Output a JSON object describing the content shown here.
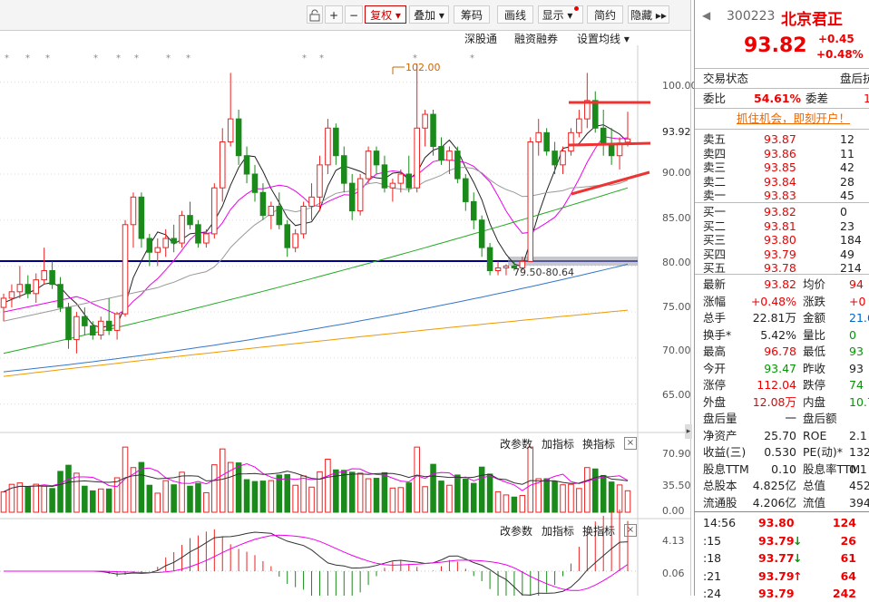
{
  "toolbar": {
    "buttons": [
      {
        "label": "+"
      },
      {
        "label": "−"
      },
      {
        "label": "复权 ▾"
      },
      {
        "label": "叠加 ▾"
      },
      {
        "label": "筹码"
      },
      {
        "label": "画线"
      },
      {
        "label": "显示 ▾"
      },
      {
        "label": "简约"
      },
      {
        "label": "隐藏 ▸▸"
      }
    ]
  },
  "chart_links": {
    "a": "深股通",
    "b": "融资融券",
    "c": "设置均线 ▾"
  },
  "price_chart": {
    "y_ticks": [
      "100.00",
      "93.92",
      "90.00",
      "85.00",
      "80.00",
      "75.00",
      "70.00",
      "65.00"
    ],
    "annotation_high": "102.00",
    "annotation_zone": "79.50-80.64"
  },
  "volume_chart": {
    "buttons": {
      "a": "改参数",
      "b": "加指标",
      "c": "换指标"
    },
    "y_ticks": [
      "70.90",
      "35.50",
      "0.00"
    ]
  },
  "macd_chart": {
    "buttons": {
      "a": "改参数",
      "b": "加指标",
      "c": "换指标"
    },
    "y_ticks": [
      "4.13",
      "0.06"
    ]
  },
  "stock": {
    "code": "300223",
    "name": "北京君正",
    "price": "93.82",
    "change": "+0.45",
    "change_pct": "+0.48%"
  },
  "status": {
    "label": "交易状态",
    "value": "盘后抗"
  },
  "weibi": {
    "label1": "委比",
    "value1": "54.61%",
    "label2": "委差",
    "value2": "1"
  },
  "promo": "抓住机会，即刻开户！",
  "asks": [
    {
      "label": "卖五",
      "price": "93.87",
      "vol": "12"
    },
    {
      "label": "卖四",
      "price": "93.86",
      "vol": "11"
    },
    {
      "label": "卖三",
      "price": "93.85",
      "vol": "42"
    },
    {
      "label": "卖二",
      "price": "93.84",
      "vol": "28"
    },
    {
      "label": "卖一",
      "price": "93.83",
      "vol": "45"
    }
  ],
  "bids": [
    {
      "label": "买一",
      "price": "93.82",
      "vol": "0"
    },
    {
      "label": "买二",
      "price": "93.81",
      "vol": "23"
    },
    {
      "label": "买三",
      "price": "93.80",
      "vol": "184"
    },
    {
      "label": "买四",
      "price": "93.79",
      "vol": "49"
    },
    {
      "label": "买五",
      "price": "93.78",
      "vol": "214"
    }
  ],
  "stats": [
    {
      "l1": "最新",
      "v1": "93.82",
      "c1": "red",
      "l2": "均价",
      "v2": "94",
      "c2": "red"
    },
    {
      "l1": "涨幅",
      "v1": "+0.48%",
      "c1": "red",
      "l2": "涨跌",
      "v2": "+0",
      "c2": "red"
    },
    {
      "l1": "总手",
      "v1": "22.81万",
      "c1": "",
      "l2": "金额",
      "v2": "21.6",
      "c2": "blue"
    },
    {
      "l1": "换手*",
      "v1": "5.42%",
      "c1": "",
      "l2": "量比",
      "v2": "0",
      "c2": "green"
    },
    {
      "l1": "最高",
      "v1": "96.78",
      "c1": "red",
      "l2": "最低",
      "v2": "93",
      "c2": "green"
    },
    {
      "l1": "今开",
      "v1": "93.47",
      "c1": "green",
      "l2": "昨收",
      "v2": "93",
      "c2": ""
    },
    {
      "l1": "涨停",
      "v1": "112.04",
      "c1": "red",
      "l2": "跌停",
      "v2": "74",
      "c2": "green"
    },
    {
      "l1": "外盘",
      "v1": "12.08万",
      "c1": "red",
      "l2": "内盘",
      "v2": "10.7",
      "c2": "green"
    },
    {
      "l1": "盘后量",
      "v1": "一",
      "c1": "",
      "l2": "盘后额",
      "v2": "",
      "c2": ""
    },
    {
      "l1": "净资产",
      "v1": "25.70",
      "c1": "",
      "l2": "ROE",
      "v2": "2.1",
      "c2": ""
    },
    {
      "l1": "收益(三)",
      "v1": "0.530",
      "c1": "",
      "l2": "PE(动)*",
      "v2": "132",
      "c2": ""
    },
    {
      "l1": "股息TTM",
      "v1": "0.10",
      "c1": "",
      "l2": "股息率TTM",
      "v2": "0.1",
      "c2": ""
    },
    {
      "l1": "总股本",
      "v1": "4.825亿",
      "c1": "",
      "l2": "总值",
      "v2": "452.",
      "c2": ""
    },
    {
      "l1": "流通股",
      "v1": "4.206亿",
      "c1": "",
      "l2": "流值",
      "v2": "394.",
      "c2": ""
    }
  ],
  "trades": [
    {
      "time": "14:56",
      "price": "93.80",
      "arrow": "",
      "vol": "124"
    },
    {
      "time": ":15",
      "price": "93.79",
      "arrow": "↓",
      "vol": "26"
    },
    {
      "time": ":18",
      "price": "93.77",
      "arrow": "↓",
      "vol": "61"
    },
    {
      "time": ":21",
      "price": "93.79",
      "arrow": "↑",
      "vol": "64"
    },
    {
      "time": ":24",
      "price": "93.79",
      "arrow": "",
      "vol": "242"
    }
  ],
  "chart_data": {
    "type": "candlestick",
    "price_axis": {
      "ylim": [
        62,
        104
      ],
      "ticks": [
        65,
        70,
        75,
        80,
        85,
        90,
        93.92,
        100
      ]
    },
    "candles": [
      {
        "o": 75.5,
        "h": 77,
        "l": 74,
        "c": 76.5
      },
      {
        "o": 76.5,
        "h": 78,
        "l": 75.5,
        "c": 77.2
      },
      {
        "o": 77.2,
        "h": 80,
        "l": 76.5,
        "c": 78
      },
      {
        "o": 78,
        "h": 79,
        "l": 76.5,
        "c": 77
      },
      {
        "o": 77,
        "h": 79.2,
        "l": 76,
        "c": 78.5
      },
      {
        "o": 78.5,
        "h": 82,
        "l": 78,
        "c": 79.5
      },
      {
        "o": 79.5,
        "h": 80.5,
        "l": 77.5,
        "c": 78
      },
      {
        "o": 78,
        "h": 78.8,
        "l": 75,
        "c": 75.5
      },
      {
        "o": 75.5,
        "h": 76,
        "l": 71,
        "c": 72
      },
      {
        "o": 72,
        "h": 75,
        "l": 70.5,
        "c": 74.5
      },
      {
        "o": 74.5,
        "h": 75.5,
        "l": 72.5,
        "c": 73.5
      },
      {
        "o": 73.5,
        "h": 74,
        "l": 72,
        "c": 72.5
      },
      {
        "o": 72.5,
        "h": 74.5,
        "l": 72,
        "c": 74
      },
      {
        "o": 74,
        "h": 76.5,
        "l": 72.5,
        "c": 73
      },
      {
        "o": 73,
        "h": 75,
        "l": 72,
        "c": 74.8
      },
      {
        "o": 74.8,
        "h": 85,
        "l": 74.5,
        "c": 84.5
      },
      {
        "o": 84.5,
        "h": 88,
        "l": 82,
        "c": 87.5
      },
      {
        "o": 87.5,
        "h": 88,
        "l": 82,
        "c": 83
      },
      {
        "o": 83,
        "h": 83.5,
        "l": 80,
        "c": 81.5
      },
      {
        "o": 81.5,
        "h": 83,
        "l": 80,
        "c": 82
      },
      {
        "o": 82,
        "h": 84,
        "l": 81,
        "c": 83
      },
      {
        "o": 83,
        "h": 84.5,
        "l": 81.5,
        "c": 82.5
      },
      {
        "o": 82.5,
        "h": 86,
        "l": 82,
        "c": 85.5
      },
      {
        "o": 85.5,
        "h": 87,
        "l": 84,
        "c": 84.5
      },
      {
        "o": 84.5,
        "h": 85,
        "l": 82,
        "c": 82.5
      },
      {
        "o": 82.5,
        "h": 84,
        "l": 82,
        "c": 83.5
      },
      {
        "o": 83.5,
        "h": 89,
        "l": 83,
        "c": 88.5
      },
      {
        "o": 88.5,
        "h": 95,
        "l": 87,
        "c": 93.5
      },
      {
        "o": 93.5,
        "h": 101,
        "l": 93,
        "c": 96
      },
      {
        "o": 96,
        "h": 97,
        "l": 91,
        "c": 92
      },
      {
        "o": 92,
        "h": 93,
        "l": 89,
        "c": 90
      },
      {
        "o": 90,
        "h": 91,
        "l": 87,
        "c": 88
      },
      {
        "o": 88,
        "h": 89,
        "l": 85,
        "c": 85.5
      },
      {
        "o": 85.5,
        "h": 87,
        "l": 84,
        "c": 86.5
      },
      {
        "o": 86.5,
        "h": 88,
        "l": 84,
        "c": 84.5
      },
      {
        "o": 84.5,
        "h": 85,
        "l": 81,
        "c": 82
      },
      {
        "o": 82,
        "h": 84,
        "l": 81.5,
        "c": 83.5
      },
      {
        "o": 83.5,
        "h": 87,
        "l": 83,
        "c": 86.5
      },
      {
        "o": 86.5,
        "h": 89,
        "l": 85,
        "c": 87.5
      },
      {
        "o": 87.5,
        "h": 92,
        "l": 86,
        "c": 91
      },
      {
        "o": 91,
        "h": 96,
        "l": 90,
        "c": 95
      },
      {
        "o": 95,
        "h": 95.5,
        "l": 91,
        "c": 92
      },
      {
        "o": 92,
        "h": 93,
        "l": 88,
        "c": 89
      },
      {
        "o": 89,
        "h": 90,
        "l": 85,
        "c": 86
      },
      {
        "o": 86,
        "h": 90,
        "l": 85.5,
        "c": 89.5
      },
      {
        "o": 89.5,
        "h": 93,
        "l": 89,
        "c": 92.5
      },
      {
        "o": 92.5,
        "h": 93,
        "l": 90,
        "c": 91
      },
      {
        "o": 91,
        "h": 92,
        "l": 88,
        "c": 88.5
      },
      {
        "o": 88.5,
        "h": 89.5,
        "l": 87,
        "c": 89
      },
      {
        "o": 89,
        "h": 90.5,
        "l": 88,
        "c": 90
      },
      {
        "o": 90,
        "h": 92,
        "l": 88,
        "c": 88.5
      },
      {
        "o": 88.5,
        "h": 102,
        "l": 88,
        "c": 95
      },
      {
        "o": 95,
        "h": 97,
        "l": 93,
        "c": 96.5
      },
      {
        "o": 96.5,
        "h": 97,
        "l": 92,
        "c": 93
      },
      {
        "o": 93,
        "h": 94,
        "l": 91,
        "c": 91.5
      },
      {
        "o": 91.5,
        "h": 93,
        "l": 90,
        "c": 92.5
      },
      {
        "o": 92.5,
        "h": 93,
        "l": 89,
        "c": 89.5
      },
      {
        "o": 89.5,
        "h": 90,
        "l": 86,
        "c": 87
      },
      {
        "o": 87,
        "h": 88,
        "l": 84,
        "c": 85
      },
      {
        "o": 85,
        "h": 85.5,
        "l": 81,
        "c": 82
      },
      {
        "o": 82,
        "h": 82.5,
        "l": 79,
        "c": 79.5
      },
      {
        "o": 79.5,
        "h": 80.5,
        "l": 79,
        "c": 79.8
      },
      {
        "o": 79.8,
        "h": 80.2,
        "l": 79,
        "c": 80
      },
      {
        "o": 80,
        "h": 80.6,
        "l": 79.5,
        "c": 79.8
      },
      {
        "o": 79.8,
        "h": 81,
        "l": 79.5,
        "c": 80.5
      },
      {
        "o": 80.5,
        "h": 94,
        "l": 80.5,
        "c": 93.5
      },
      {
        "o": 93.5,
        "h": 96,
        "l": 92,
        "c": 94.5
      },
      {
        "o": 94.5,
        "h": 95,
        "l": 92,
        "c": 92.5
      },
      {
        "o": 92.5,
        "h": 93.5,
        "l": 90,
        "c": 91
      },
      {
        "o": 91,
        "h": 93,
        "l": 90,
        "c": 92.5
      },
      {
        "o": 92.5,
        "h": 95,
        "l": 92,
        "c": 94.5
      },
      {
        "o": 94.5,
        "h": 97,
        "l": 94,
        "c": 96
      },
      {
        "o": 96,
        "h": 101,
        "l": 95,
        "c": 98
      },
      {
        "o": 98,
        "h": 99,
        "l": 94.5,
        "c": 95
      },
      {
        "o": 95,
        "h": 97,
        "l": 92,
        "c": 93.3
      },
      {
        "o": 93.3,
        "h": 95,
        "l": 91,
        "c": 92
      },
      {
        "o": 92,
        "h": 94,
        "l": 90.5,
        "c": 93.37
      },
      {
        "o": 93.47,
        "h": 96.78,
        "l": 93,
        "c": 93.82
      }
    ],
    "volume_axis": {
      "ylim": [
        0,
        75
      ],
      "ticks": [
        0,
        35.5,
        70.9
      ]
    },
    "macd_axis": {
      "ylim": [
        -3,
        6
      ],
      "ticks": [
        0.06,
        4.13
      ]
    }
  }
}
